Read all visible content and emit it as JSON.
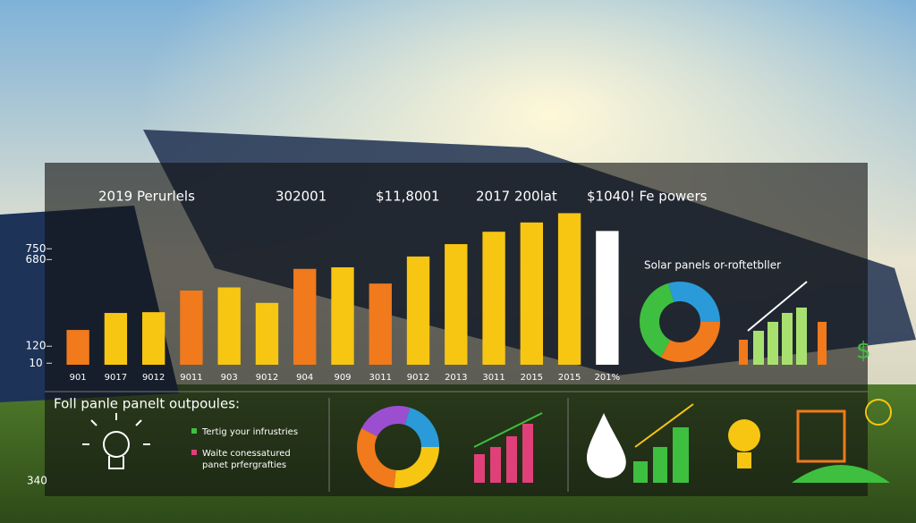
{
  "chart_data": {
    "type": "bar",
    "headlines": [
      "2019 Perurlels",
      "302001",
      "$11,8001",
      "2017 200lat",
      "$1040! Fe powers"
    ],
    "side_title": "Solar panels or-roftetbller",
    "bottom_title": "Foll panle panelt outpoules:",
    "bottom_legend": [
      "Tertig your infrustries",
      "Waite conessatured",
      "panet prfergrafties"
    ],
    "corner_label": "340",
    "categories": [
      "901",
      "9017",
      "9012",
      "9011",
      "903",
      "9012",
      "904",
      "909",
      "3011",
      "9012",
      "2013",
      "3011",
      "2015",
      "2015",
      "201%"
    ],
    "values": [
      225,
      335,
      340,
      480,
      500,
      400,
      620,
      630,
      525,
      700,
      780,
      860,
      920,
      980,
      865
    ],
    "colors": [
      "#f07a1c",
      "#f7c613",
      "#f7c613",
      "#f07a1c",
      "#f7c613",
      "#f7c613",
      "#f07a1c",
      "#f7c613",
      "#f07a1c",
      "#f7c613",
      "#f7c613",
      "#f7c613",
      "#f7c613",
      "#f7c613",
      "#ffffff"
    ],
    "ylim": [
      0,
      1000
    ],
    "yticks": [
      10,
      120,
      680,
      750
    ]
  }
}
